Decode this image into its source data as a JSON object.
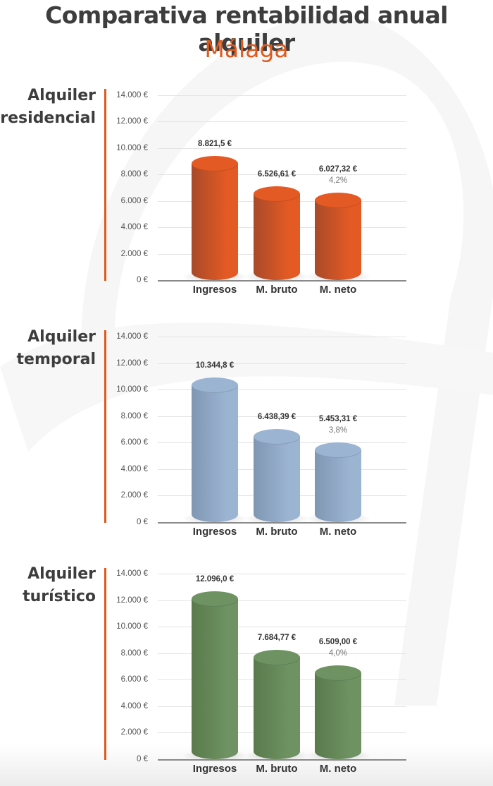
{
  "header": {
    "title": "Comparativa rentabilidad anual alquiler",
    "subtitle": "Málaga"
  },
  "colors": {
    "accent": "#e05a1e",
    "title": "#3d3d3d",
    "residencial": [
      "#a84a2a",
      "#e35a24"
    ],
    "temporal": [
      "#7f97b2",
      "#9bb4d2"
    ],
    "turistico": [
      "#5a7a4c",
      "#6e9262"
    ]
  },
  "yticks": [
    "14.000 €",
    "12.000 €",
    "10.000 €",
    "8.000 €",
    "6.000 €",
    "4.000 €",
    "2.000 €",
    "0 €"
  ],
  "categories": [
    "Ingresos",
    "M. bruto",
    "M. neto"
  ],
  "sections": [
    {
      "title_line1": "Alquiler",
      "title_line2": "residencial",
      "value_labels": [
        "8.821,5 €",
        "6.526,61 €",
        "6.027,32 €"
      ],
      "pct_label": "4,2%"
    },
    {
      "title_line1": "Alquiler",
      "title_line2": "temporal",
      "value_labels": [
        "10.344,8 €",
        "6.438,39 €",
        "5.453,31 €"
      ],
      "pct_label": "3,8%"
    },
    {
      "title_line1": "Alquiler",
      "title_line2": "turístico",
      "value_labels": [
        "12.096,0 €",
        "7.684,77 €",
        "6.509,00 €"
      ],
      "pct_label": "4,0%"
    }
  ],
  "chart_data": [
    {
      "type": "bar",
      "title": "Alquiler residencial",
      "categories": [
        "Ingresos",
        "M. bruto",
        "M. neto"
      ],
      "values": [
        8821.5,
        6526.61,
        6027.32
      ],
      "annotations": {
        "M. neto": "4,2%"
      },
      "ylabel": "€",
      "ylim": [
        0,
        14000
      ],
      "yticks": [
        0,
        2000,
        4000,
        6000,
        8000,
        10000,
        12000,
        14000
      ],
      "grid": true,
      "color": "#e35a24",
      "style": "3d-cylinder"
    },
    {
      "type": "bar",
      "title": "Alquiler temporal",
      "categories": [
        "Ingresos",
        "M. bruto",
        "M. neto"
      ],
      "values": [
        10344.8,
        6438.39,
        5453.31
      ],
      "annotations": {
        "M. neto": "3,8%"
      },
      "ylabel": "€",
      "ylim": [
        0,
        14000
      ],
      "yticks": [
        0,
        2000,
        4000,
        6000,
        8000,
        10000,
        12000,
        14000
      ],
      "grid": true,
      "color": "#9bb4d2",
      "style": "3d-cylinder"
    },
    {
      "type": "bar",
      "title": "Alquiler turístico",
      "categories": [
        "Ingresos",
        "M. bruto",
        "M. neto"
      ],
      "values": [
        12096.0,
        7684.77,
        6509.0
      ],
      "annotations": {
        "M. neto": "4,0%"
      },
      "ylabel": "€",
      "ylim": [
        0,
        14000
      ],
      "yticks": [
        0,
        2000,
        4000,
        6000,
        8000,
        10000,
        12000,
        14000
      ],
      "grid": true,
      "color": "#6e9262",
      "style": "3d-cylinder"
    }
  ]
}
